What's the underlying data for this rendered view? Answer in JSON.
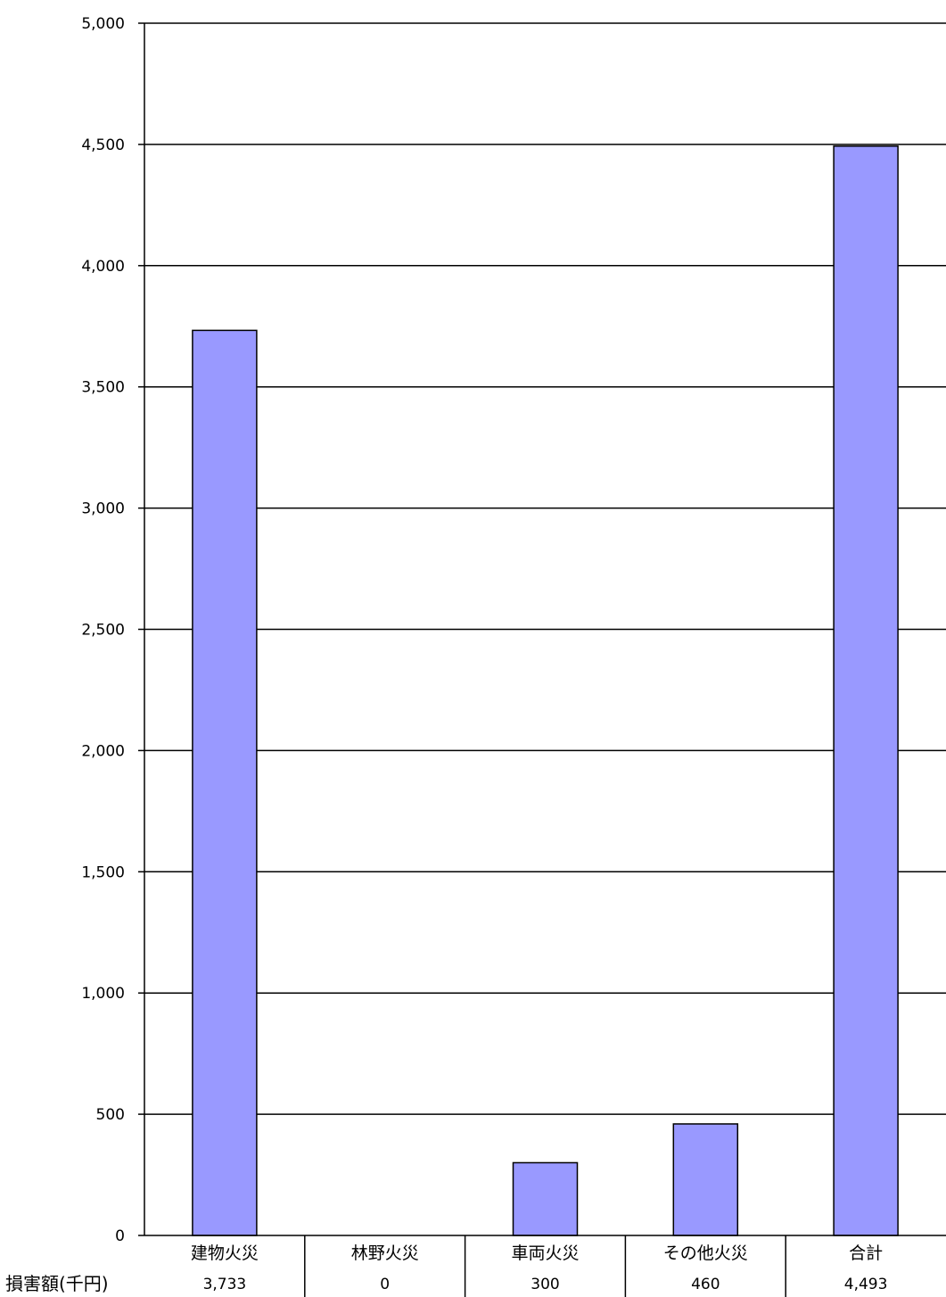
{
  "chart_data": {
    "type": "bar",
    "categories": [
      "建物火災",
      "林野火災",
      "車両火災",
      "その他火災",
      "合計"
    ],
    "values": [
      3733,
      0,
      300,
      460,
      4493
    ],
    "value_labels": [
      "3,733",
      "0",
      "300",
      "460",
      "4,493"
    ],
    "row_label": "損害額(千円)",
    "ylim": [
      0,
      5000
    ],
    "yticks": [
      "0",
      "500",
      "1,000",
      "1,500",
      "2,000",
      "2,500",
      "3,000",
      "3,500",
      "4,000",
      "4,500",
      "5,000"
    ],
    "grid": true,
    "title": "",
    "xlabel": "",
    "ylabel": "",
    "bar_color": "#9999ff",
    "bar_stroke": "#000000"
  }
}
